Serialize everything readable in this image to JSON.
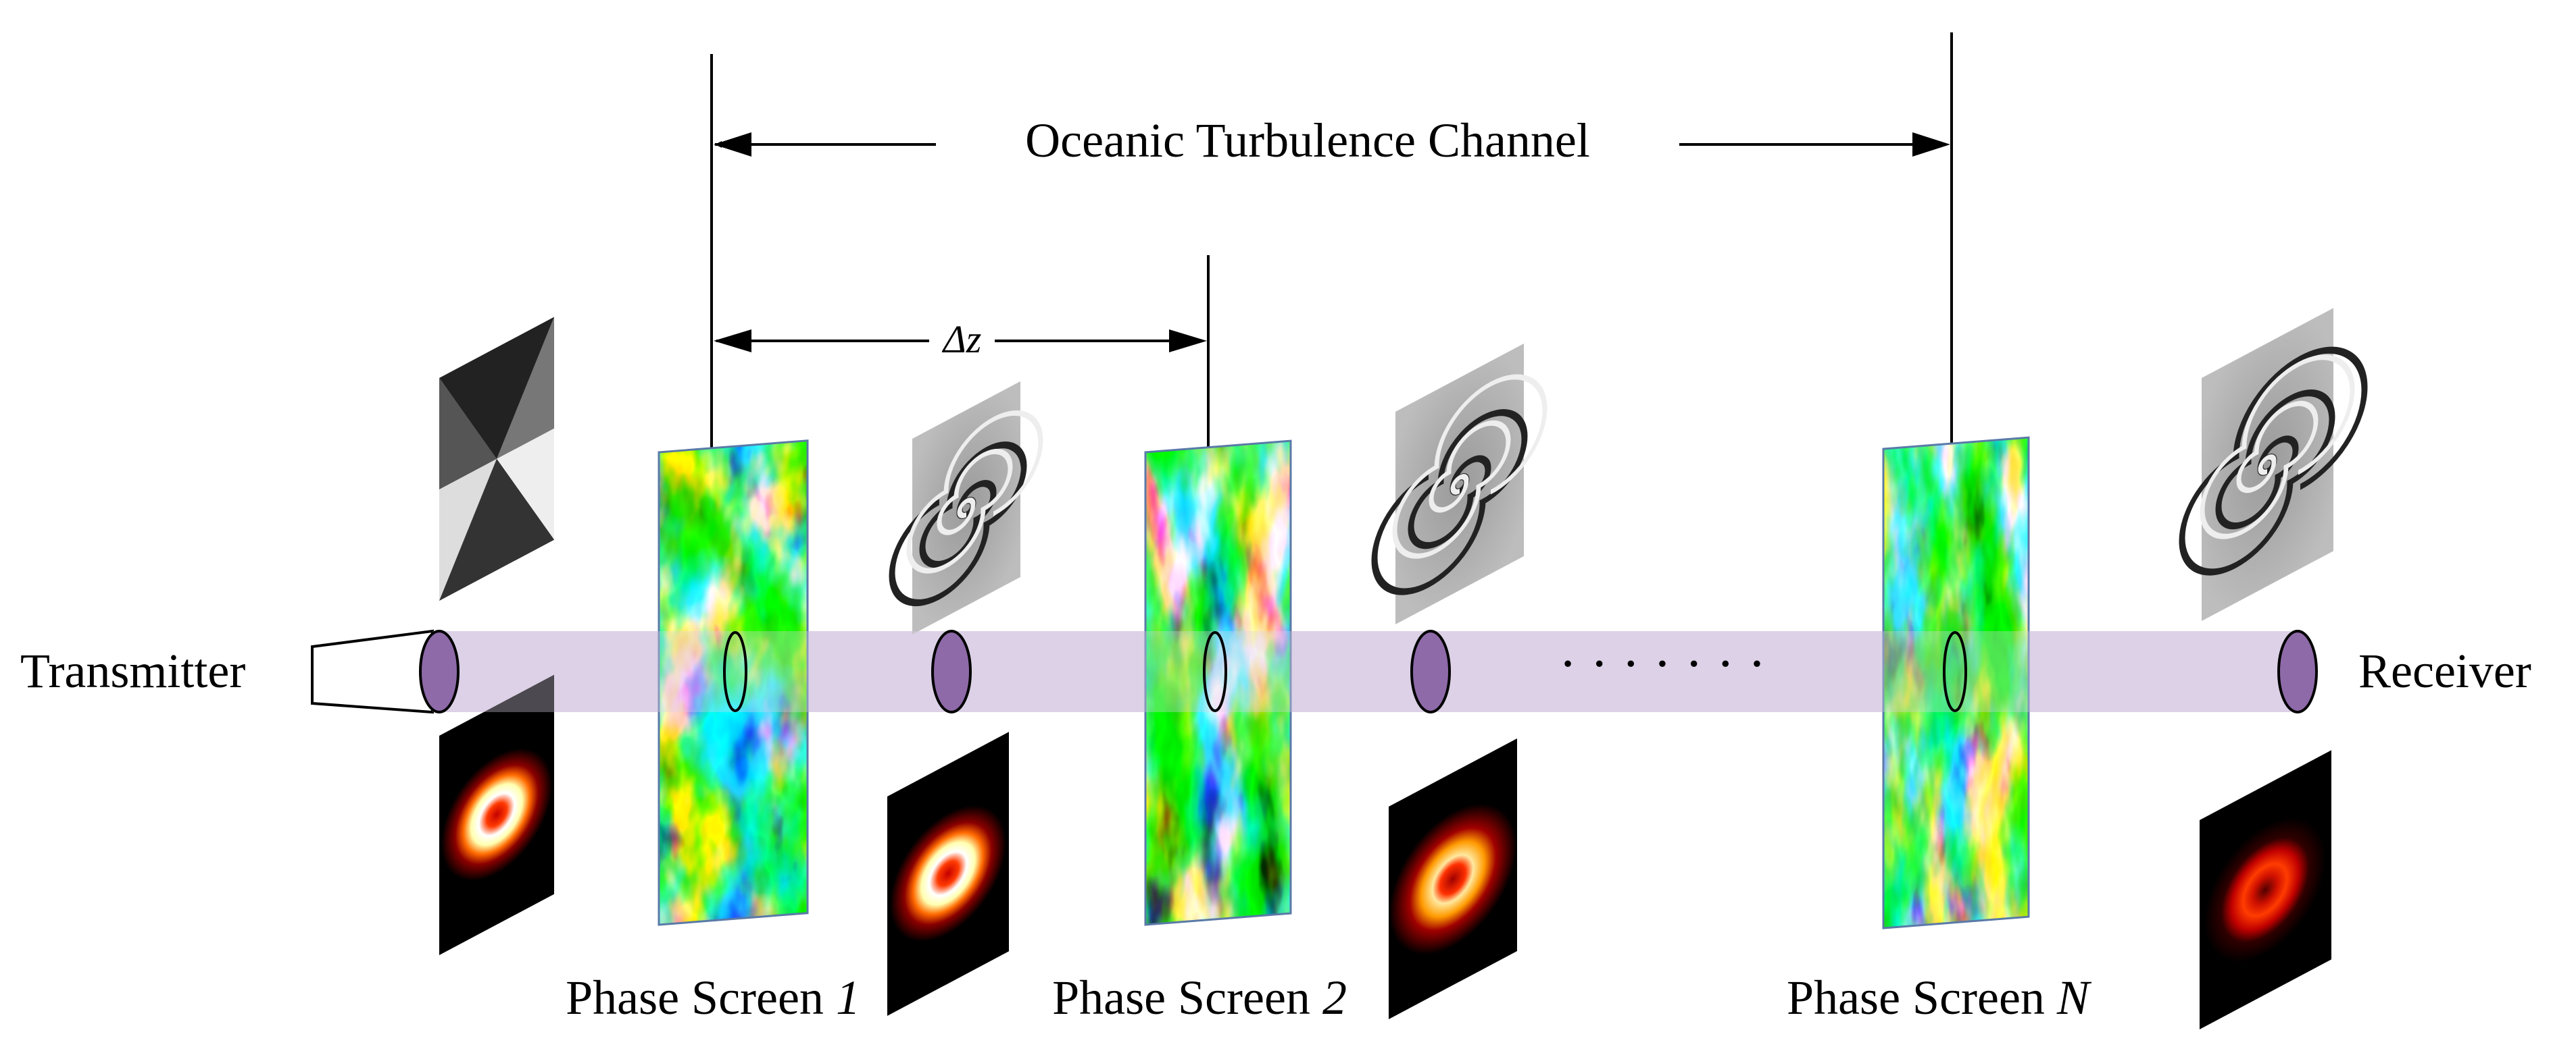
{
  "labels": {
    "channel": "Oceanic Turbulence Channel",
    "delta_z": "Δz",
    "transmitter": "Transmitter",
    "receiver": "Receiver",
    "dots": "· · · · · · ·"
  },
  "screens": [
    {
      "prefix": "Phase Screen ",
      "index": "1"
    },
    {
      "prefix": "Phase Screen ",
      "index": "2"
    },
    {
      "prefix": "Phase Screen ",
      "index": "N"
    }
  ],
  "colors": {
    "beam": "#dcd2e6",
    "aperture": "#8e6aa8",
    "line": "#000000"
  },
  "icons": {
    "spiral_phase_plate": "spiral-phase-plate-icon",
    "interference_pattern": "spiral-interference-pattern-icon",
    "intensity_ring": "vortex-intensity-ring-icon",
    "turbulence_screen": "turbulence-phase-screen-icon",
    "transmitter": "transmitter-lens-icon"
  }
}
